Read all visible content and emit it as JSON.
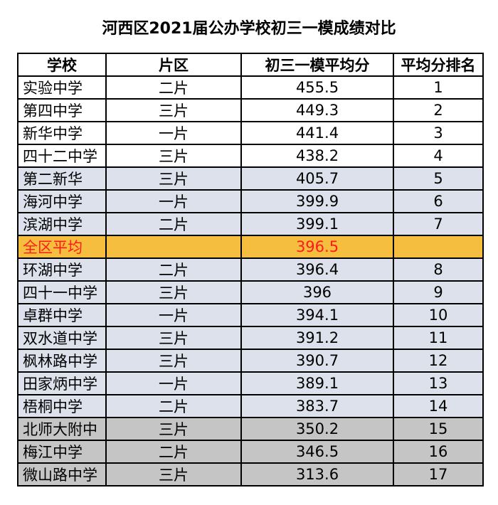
{
  "title": "河西区2021届公办学校初三一模成绩对比",
  "headers": [
    "学校",
    "片区",
    "初三一模平均分",
    "平均分排名"
  ],
  "rows": [
    {
      "school": "实验中学",
      "district": "二片",
      "score": "455.5",
      "rank": "1",
      "style": "w"
    },
    {
      "school": "第四中学",
      "district": "三片",
      "score": "449.3",
      "rank": "2",
      "style": "w"
    },
    {
      "school": "新华中学",
      "district": "一片",
      "score": "441.4",
      "rank": "3",
      "style": "w"
    },
    {
      "school": "四十二中学",
      "district": "三片",
      "score": "438.2",
      "rank": "4",
      "style": "w"
    },
    {
      "school": "第二新华",
      "district": "三片",
      "score": "405.7",
      "rank": "5",
      "style": "l"
    },
    {
      "school": "海河中学",
      "district": "一片",
      "score": "399.9",
      "rank": "6",
      "style": "l"
    },
    {
      "school": "滨湖中学",
      "district": "二片",
      "score": "399.1",
      "rank": "7",
      "style": "l"
    },
    {
      "school": "全区平均",
      "district": "",
      "score": "396.5",
      "rank": "",
      "style": "hl"
    },
    {
      "school": "环湖中学",
      "district": "二片",
      "score": "396.4",
      "rank": "8",
      "style": "l"
    },
    {
      "school": "四十一中学",
      "district": "三片",
      "score": "396",
      "rank": "9",
      "style": "l"
    },
    {
      "school": "卓群中学",
      "district": "一片",
      "score": "394.1",
      "rank": "10",
      "style": "l"
    },
    {
      "school": "双水道中学",
      "district": "三片",
      "score": "391.2",
      "rank": "11",
      "style": "l"
    },
    {
      "school": "枫林路中学",
      "district": "三片",
      "score": "390.7",
      "rank": "12",
      "style": "l"
    },
    {
      "school": "田家炳中学",
      "district": "一片",
      "score": "389.1",
      "rank": "13",
      "style": "l"
    },
    {
      "school": "梧桐中学",
      "district": "二片",
      "score": "383.7",
      "rank": "14",
      "style": "l"
    },
    {
      "school": "北师大附中",
      "district": "三片",
      "score": "350.2",
      "rank": "15",
      "style": "g"
    },
    {
      "school": "梅江中学",
      "district": "二片",
      "score": "346.5",
      "rank": "16",
      "style": "g"
    },
    {
      "school": "微山路中学",
      "district": "三片",
      "score": "313.6",
      "rank": "17",
      "style": "g"
    }
  ],
  "colors": {
    "white_row": "#ffffff",
    "light_row": "#dde1ec",
    "gray_row": "#c5c5c5",
    "highlight_row": "#f6be3e",
    "highlight_text": "#ff1a1a"
  }
}
